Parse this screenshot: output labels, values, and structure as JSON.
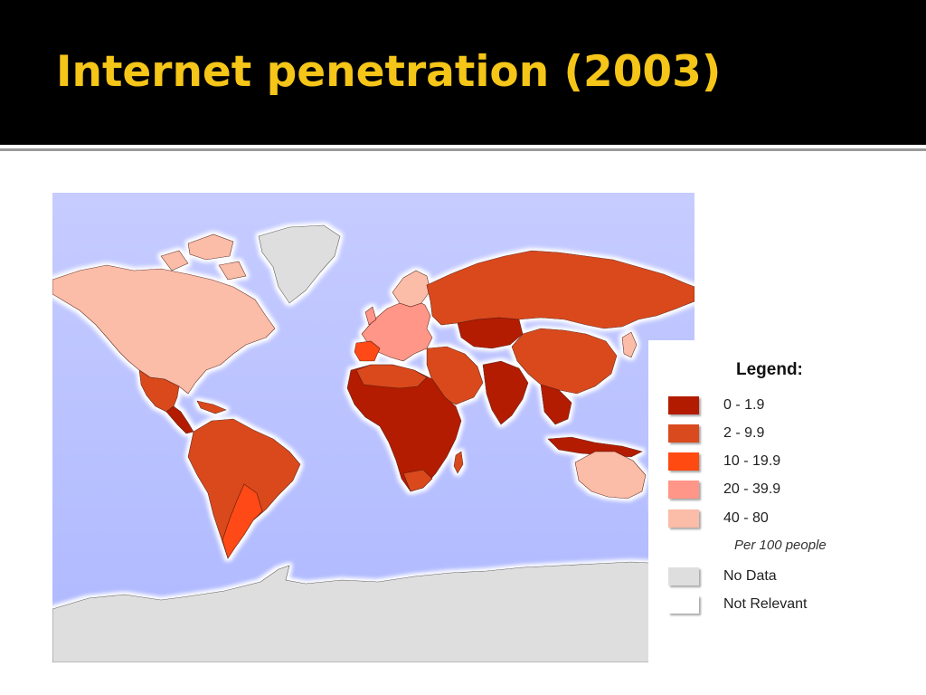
{
  "slide": {
    "title": "Internet penetration (2003)"
  },
  "colors": {
    "title": "#f5c518",
    "ocean": "#b9c2ff",
    "band_0_1_9": "#b31b00",
    "band_2_9_9": "#d94a1e",
    "band_10_19_9": "#ff4a12",
    "band_20_39_9": "#ff9688",
    "band_40_80": "#fbbca8",
    "no_data": "#dedede",
    "not_relevant": "#ffffff"
  },
  "legend": {
    "title": "Legend:",
    "items": [
      {
        "label": "0 - 1.9",
        "color": "#b31b00"
      },
      {
        "label": "2 - 9.9",
        "color": "#d94a1e"
      },
      {
        "label": "10 - 19.9",
        "color": "#ff4a12"
      },
      {
        "label": "20 - 39.9",
        "color": "#ff9688"
      },
      {
        "label": "40 - 80",
        "color": "#fbbca8"
      }
    ],
    "unit_note": "Per 100 people",
    "extra": [
      {
        "label": "No Data",
        "color": "#dedede"
      },
      {
        "label": "Not Relevant",
        "color": "#ffffff"
      }
    ]
  }
}
